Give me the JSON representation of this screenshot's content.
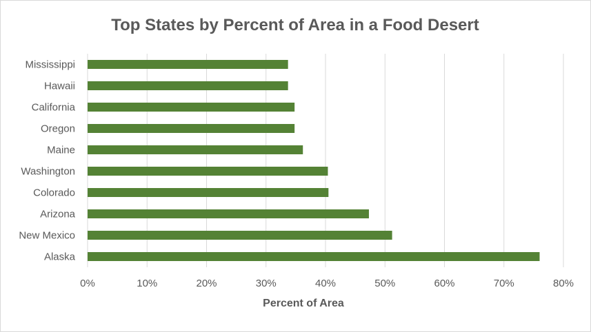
{
  "chart_data": {
    "type": "bar",
    "orientation": "horizontal",
    "title": "Top States by Percent of Area in a Food Desert",
    "xlabel": "Percent of Area",
    "ylabel": "",
    "categories": [
      "Mississippi",
      "Hawaii",
      "California",
      "Oregon",
      "Maine",
      "Washington",
      "Colorado",
      "Arizona",
      "New Mexico",
      "Alaska"
    ],
    "values": [
      0.337,
      0.337,
      0.348,
      0.348,
      0.362,
      0.404,
      0.405,
      0.473,
      0.512,
      0.76
    ],
    "xlim": [
      0,
      0.8
    ],
    "x_ticks": [
      "0%",
      "10%",
      "20%",
      "30%",
      "40%",
      "50%",
      "60%",
      "70%",
      "80%"
    ],
    "grid": "vertical",
    "legend": "none",
    "bar_color": "#548235",
    "grid_color": "#d9d9d9"
  }
}
